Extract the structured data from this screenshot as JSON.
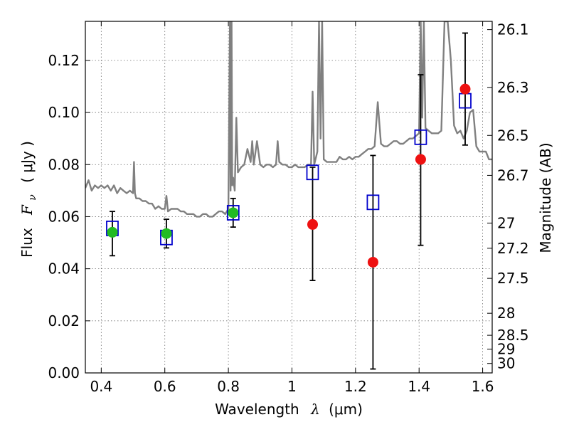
{
  "chart_data": {
    "type": "scatter",
    "xlabel": "Wavelength",
    "xlabel_symbol": "λ",
    "xlabel_unit": "(μm)",
    "ylabel": "Flux",
    "ylabel_symbol": "F",
    "ylabel_subscript": "ν",
    "ylabel_unit": "( μJy )",
    "y2label": "Magnitude (AB)",
    "xlim": [
      0.35,
      1.63
    ],
    "ylim": [
      0.0,
      0.135
    ],
    "x_ticks": [
      0.4,
      0.6,
      0.8,
      1.0,
      1.2,
      1.4,
      1.6
    ],
    "x_tick_labels": [
      "0.4",
      "0.6",
      "0.8",
      "1",
      "1.2",
      "1.4",
      "1.6"
    ],
    "y_ticks": [
      0.0,
      0.02,
      0.04,
      0.06,
      0.08,
      0.1,
      0.12
    ],
    "y_tick_labels": [
      "0.00",
      "0.02",
      "0.04",
      "0.06",
      "0.08",
      "0.10",
      "0.12"
    ],
    "mag_ticks": [
      26.1,
      26.3,
      26.5,
      26.7,
      27,
      27.2,
      27.5,
      28,
      28.5,
      29,
      30
    ],
    "mag_tick_labels": [
      "26.1",
      "26.3",
      "26.5",
      "26.7",
      "27",
      "27.2",
      "27.5",
      "28",
      "28.5",
      "29",
      "30"
    ],
    "grid": true,
    "colors": {
      "spectrum": "#808080",
      "model": "#0000cc",
      "observed_green": "#22bb22",
      "observed_red": "#ee1111",
      "errorbar": "#000000"
    },
    "series": [
      {
        "name": "model spectrum",
        "kind": "line",
        "x": [
          0.35,
          0.36,
          0.37,
          0.38,
          0.39,
          0.4,
          0.41,
          0.42,
          0.43,
          0.44,
          0.45,
          0.46,
          0.47,
          0.48,
          0.49,
          0.5,
          0.503,
          0.506,
          0.51,
          0.52,
          0.53,
          0.54,
          0.55,
          0.56,
          0.57,
          0.58,
          0.59,
          0.6,
          0.605,
          0.61,
          0.62,
          0.63,
          0.64,
          0.65,
          0.66,
          0.67,
          0.68,
          0.69,
          0.7,
          0.71,
          0.72,
          0.73,
          0.74,
          0.75,
          0.76,
          0.77,
          0.78,
          0.79,
          0.8,
          0.805,
          0.807,
          0.81,
          0.812,
          0.815,
          0.82,
          0.825,
          0.83,
          0.84,
          0.85,
          0.86,
          0.87,
          0.875,
          0.88,
          0.89,
          0.9,
          0.91,
          0.92,
          0.93,
          0.94,
          0.95,
          0.955,
          0.96,
          0.97,
          0.98,
          0.99,
          1.0,
          1.01,
          1.02,
          1.03,
          1.04,
          1.05,
          1.06,
          1.065,
          1.07,
          1.08,
          1.085,
          1.09,
          1.095,
          1.1,
          1.11,
          1.12,
          1.13,
          1.14,
          1.15,
          1.16,
          1.17,
          1.18,
          1.19,
          1.2,
          1.21,
          1.22,
          1.23,
          1.24,
          1.25,
          1.26,
          1.27,
          1.28,
          1.29,
          1.3,
          1.31,
          1.32,
          1.33,
          1.34,
          1.35,
          1.36,
          1.37,
          1.38,
          1.39,
          1.4,
          1.405,
          1.41,
          1.415,
          1.42,
          1.43,
          1.44,
          1.45,
          1.46,
          1.47,
          1.48,
          1.49,
          1.5,
          1.51,
          1.52,
          1.53,
          1.54,
          1.55,
          1.56,
          1.57,
          1.58,
          1.59,
          1.6,
          1.61,
          1.62,
          1.63
        ],
        "y": [
          0.071,
          0.074,
          0.07,
          0.072,
          0.071,
          0.072,
          0.071,
          0.072,
          0.07,
          0.072,
          0.069,
          0.071,
          0.07,
          0.069,
          0.07,
          0.069,
          0.081,
          0.069,
          0.067,
          0.067,
          0.066,
          0.066,
          0.065,
          0.065,
          0.063,
          0.064,
          0.063,
          0.063,
          0.068,
          0.062,
          0.063,
          0.063,
          0.063,
          0.062,
          0.062,
          0.061,
          0.061,
          0.061,
          0.06,
          0.06,
          0.061,
          0.061,
          0.06,
          0.06,
          0.061,
          0.062,
          0.062,
          0.061,
          0.063,
          0.135,
          0.07,
          0.135,
          0.072,
          0.075,
          0.07,
          0.098,
          0.077,
          0.079,
          0.08,
          0.086,
          0.081,
          0.089,
          0.08,
          0.089,
          0.08,
          0.079,
          0.08,
          0.08,
          0.079,
          0.08,
          0.089,
          0.081,
          0.08,
          0.08,
          0.079,
          0.079,
          0.08,
          0.079,
          0.079,
          0.079,
          0.08,
          0.08,
          0.108,
          0.08,
          0.085,
          0.135,
          0.09,
          0.135,
          0.082,
          0.081,
          0.081,
          0.081,
          0.081,
          0.083,
          0.082,
          0.082,
          0.083,
          0.082,
          0.083,
          0.083,
          0.084,
          0.085,
          0.086,
          0.086,
          0.087,
          0.104,
          0.088,
          0.087,
          0.087,
          0.088,
          0.089,
          0.089,
          0.088,
          0.088,
          0.089,
          0.09,
          0.09,
          0.091,
          0.092,
          0.135,
          0.098,
          0.135,
          0.094,
          0.093,
          0.092,
          0.092,
          0.092,
          0.093,
          0.135,
          0.135,
          0.12,
          0.095,
          0.092,
          0.093,
          0.09,
          0.093,
          0.1,
          0.101,
          0.087,
          0.085,
          0.085,
          0.085,
          0.082,
          0.082
        ]
      },
      {
        "name": "model photometry",
        "kind": "marker-square",
        "x": [
          0.435,
          0.605,
          0.815,
          1.065,
          1.255,
          1.405,
          1.545
        ],
        "y": [
          0.0555,
          0.052,
          0.0615,
          0.077,
          0.0655,
          0.0905,
          0.1045
        ]
      },
      {
        "name": "observed photometry",
        "kind": "marker-circle-errorbar",
        "x": [
          0.435,
          0.605,
          0.815,
          1.065,
          1.255,
          1.405,
          1.545
        ],
        "y": [
          0.054,
          0.0535,
          0.0615,
          0.057,
          0.0425,
          0.082,
          0.109
        ],
        "yerr_low": [
          0.045,
          0.048,
          0.056,
          0.0355,
          0.0015,
          0.049,
          0.0875
        ],
        "yerr_high": [
          0.062,
          0.059,
          0.067,
          0.079,
          0.0835,
          0.1145,
          0.1305
        ],
        "marker_color": [
          "#22bb22",
          "#22bb22",
          "#22bb22",
          "#ee1111",
          "#ee1111",
          "#ee1111",
          "#ee1111"
        ]
      }
    ]
  }
}
